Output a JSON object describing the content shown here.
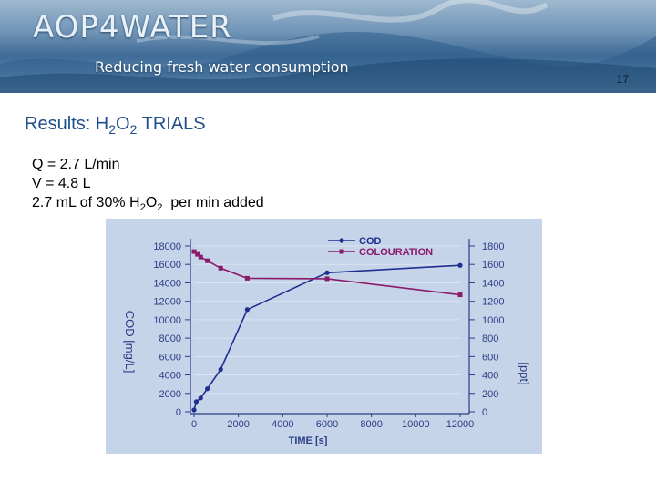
{
  "header": {
    "logo": "AOP4WATER",
    "tagline": "Reducing fresh water consumption",
    "slide_number": "17"
  },
  "slide": {
    "title_prefix": "Results: H",
    "title_sub1": "2",
    "title_mid": "O",
    "title_sub2": "2",
    "title_suffix": " TRIALS",
    "line_q": "Q = 2.7 L/min",
    "line_v": "V = 4.8 L",
    "line3_prefix": "2.7 mL of 30% H",
    "line3_sub1": "2",
    "line3_mid": "O",
    "line3_sub2": "2",
    "line3_suffix": "  per min added"
  },
  "colors": {
    "cod": "#1f2f8f",
    "colouration": "#8a1a6b",
    "chart_bg": "#c5d4e9",
    "title": "#1f4e8c"
  },
  "chart_data": {
    "type": "line",
    "xlabel": "TIME [s]",
    "ylabel_left": "COD [mg/L]",
    "ylabel_right": "[ppt]",
    "xlim": [
      0,
      12000
    ],
    "ylim_left": [
      0,
      18000
    ],
    "ylim_right": [
      0,
      1800
    ],
    "x_ticks": [
      "0",
      "2000",
      "4000",
      "6000",
      "8000",
      "10000",
      "12000"
    ],
    "y_left_ticks": [
      "0",
      "2000",
      "4000",
      "6000",
      "8000",
      "10000",
      "12000",
      "14000",
      "16000",
      "18000"
    ],
    "y_right_ticks": [
      "0",
      "200",
      "400",
      "600",
      "800",
      "1000",
      "1200",
      "1400",
      "1600",
      "1800"
    ],
    "legend_position": "top",
    "series": [
      {
        "name": "COD",
        "axis": "left",
        "marker": "circle",
        "x": [
          0,
          100,
          300,
          600,
          1200,
          2400,
          6000,
          12000
        ],
        "y": [
          200,
          1100,
          1500,
          2500,
          4600,
          11100,
          15100,
          15900
        ]
      },
      {
        "name": "COLOURATION",
        "axis": "right",
        "marker": "square",
        "x": [
          0,
          150,
          300,
          600,
          1200,
          2400,
          6000,
          12000
        ],
        "y": [
          1740,
          1710,
          1680,
          1640,
          1560,
          1450,
          1445,
          1270
        ]
      }
    ]
  }
}
